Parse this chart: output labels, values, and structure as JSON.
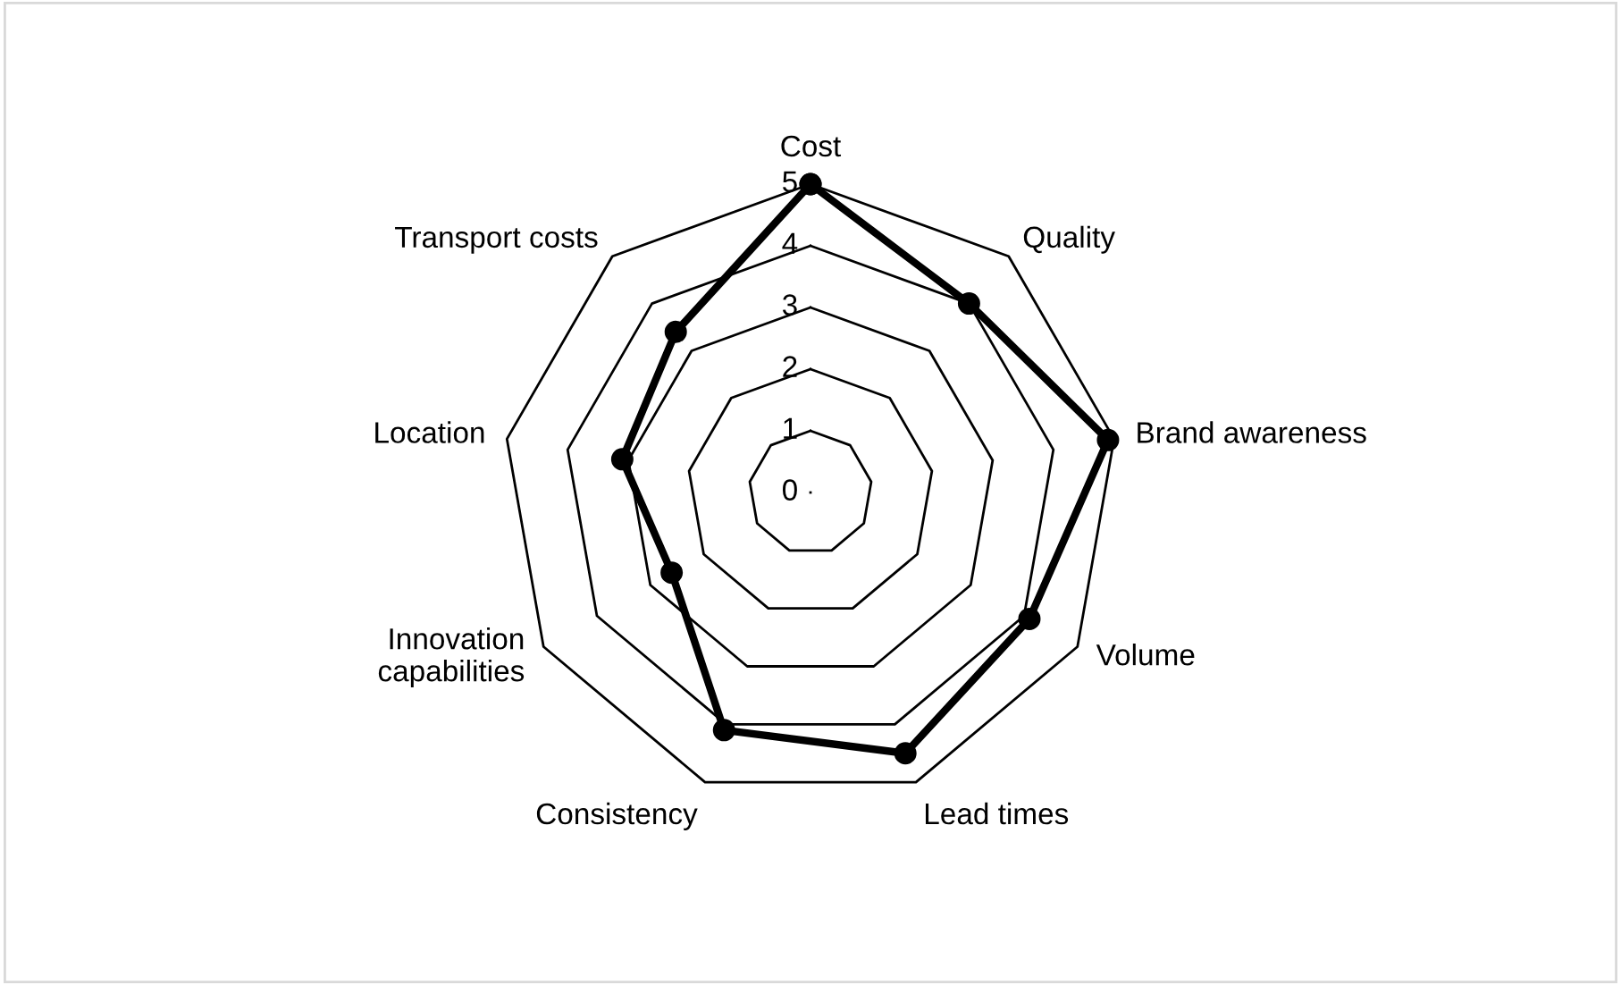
{
  "chart_data": {
    "type": "radar",
    "categories": [
      "Cost",
      "Quality",
      "Brand awareness",
      "Volume",
      "Lead times",
      "Consistency",
      "Innovation\ncapabilities",
      "Location",
      "Transport costs"
    ],
    "series": [
      {
        "color": "#000000",
        "values": [
          5,
          4,
          4.9,
          4.1,
          4.5,
          4.1,
          2.6,
          3.1,
          3.4
        ]
      }
    ],
    "ylim": [
      0,
      5
    ],
    "yticks": [
      0,
      1,
      2,
      3,
      4,
      5
    ],
    "marker": "circle",
    "line_style": "solid",
    "grid": true
  }
}
